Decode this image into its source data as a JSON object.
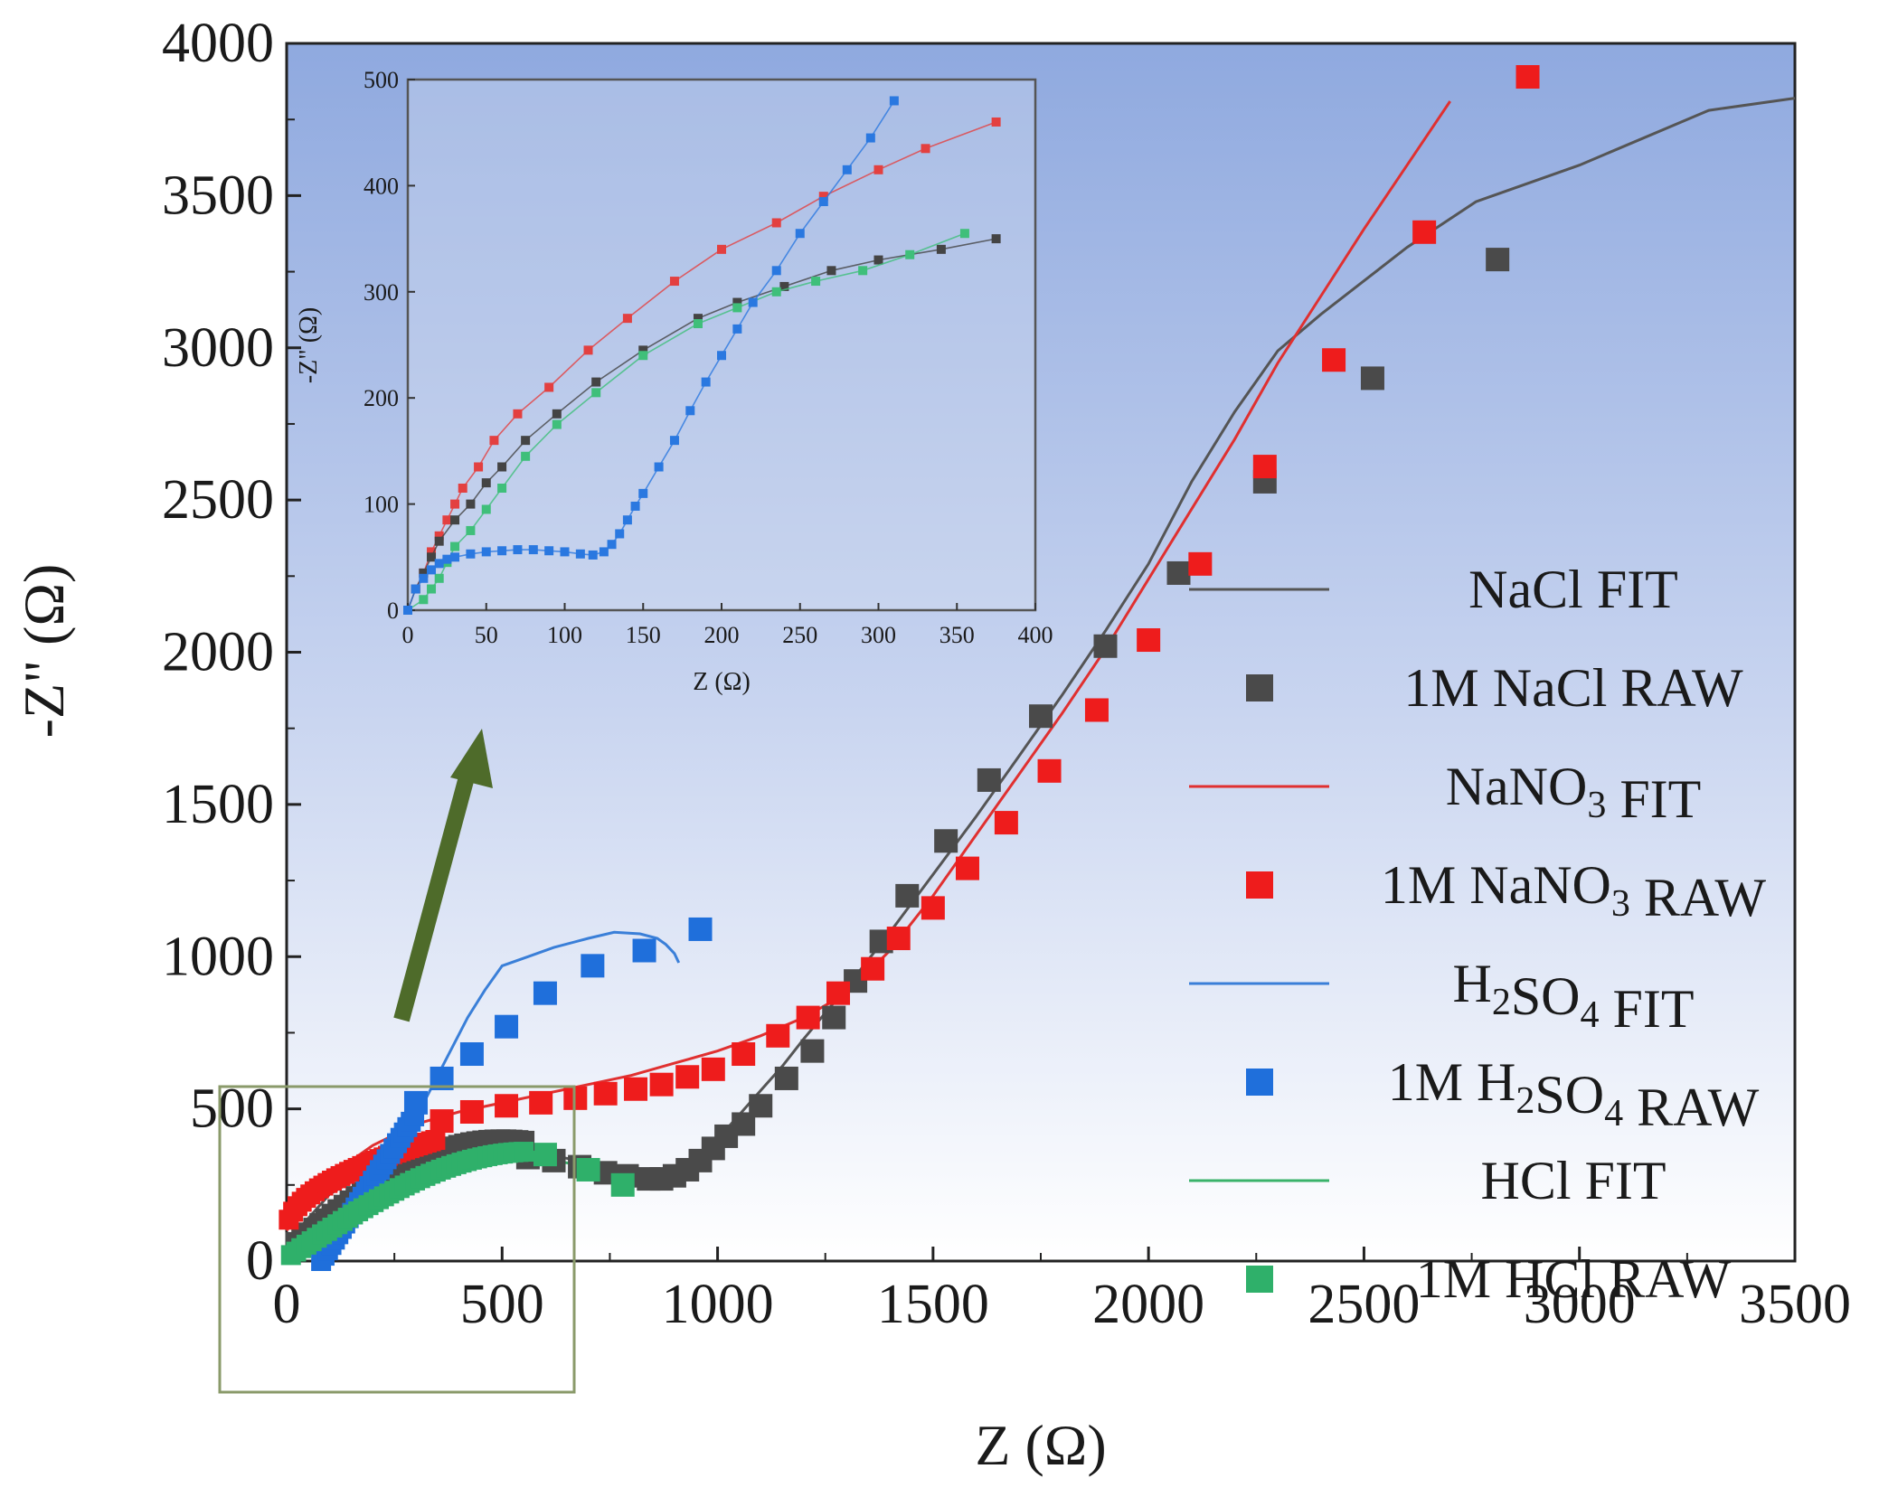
{
  "chart_data": [
    {
      "id": "main",
      "type": "scatter",
      "title": "",
      "xlabel": "Z (Ω)",
      "ylabel": "-Z\" (Ω)",
      "xlim": [
        0,
        3500
      ],
      "ylim": [
        0,
        4000
      ],
      "xticks": [
        0,
        500,
        1000,
        1500,
        2000,
        2500,
        3000,
        3500
      ],
      "yticks": [
        0,
        500,
        1000,
        1500,
        2000,
        2500,
        3000,
        3500,
        4000
      ],
      "xtick_labels": [
        "0",
        "500",
        "1000",
        "1500",
        "2000",
        "2500",
        "3000",
        "3500"
      ],
      "ytick_labels": [
        "0",
        "500",
        "1000",
        "1500",
        "2000",
        "2500",
        "3000",
        "3500",
        "4000"
      ],
      "legend_position": "right",
      "series": [
        {
          "name": "NaCl FIT",
          "kind": "line",
          "color": "#555555",
          "x": [
            0,
            100,
            200,
            300,
            400,
            500,
            600,
            700,
            800,
            850,
            900,
            950,
            1000,
            1050,
            1100,
            1150,
            1200,
            1300,
            1400,
            1500,
            1600,
            1700,
            1800,
            1900,
            2000,
            2100,
            2200,
            2300,
            2400,
            2500,
            2600,
            2760,
            3000,
            3300,
            3500
          ],
          "y": [
            60,
            220,
            300,
            345,
            365,
            365,
            350,
            325,
            295,
            285,
            300,
            340,
            400,
            480,
            560,
            640,
            730,
            900,
            1080,
            1270,
            1460,
            1660,
            1860,
            2070,
            2290,
            2560,
            2790,
            2990,
            3110,
            3220,
            3330,
            3480,
            3600,
            3780,
            3820
          ]
        },
        {
          "name": "1M NaCl RAW",
          "kind": "scatter",
          "color": "#4a4a4a",
          "x": [
            560,
            620,
            680,
            740,
            790,
            840,
            870,
            900,
            930,
            960,
            990,
            1020,
            1060,
            1100,
            1160,
            1220,
            1270,
            1320,
            1380,
            1440,
            1530,
            1630,
            1750,
            1900,
            2070,
            2270,
            2520,
            2810
          ],
          "y": [
            340,
            330,
            310,
            290,
            280,
            270,
            270,
            280,
            300,
            330,
            370,
            410,
            450,
            510,
            600,
            690,
            800,
            920,
            1050,
            1200,
            1380,
            1580,
            1790,
            2020,
            2260,
            2560,
            2900,
            3290
          ]
        },
        {
          "name": "NaNO3 FIT",
          "kind": "line",
          "color": "#e03030",
          "x": [
            0,
            100,
            200,
            300,
            400,
            500,
            600,
            700,
            800,
            900,
            1000,
            1100,
            1200,
            1300,
            1400,
            1500,
            1600,
            1700,
            1800,
            1900,
            2000,
            2100,
            2200,
            2300,
            2400,
            2500,
            2600,
            2700
          ],
          "y": [
            100,
            280,
            380,
            450,
            490,
            520,
            550,
            580,
            610,
            650,
            690,
            740,
            800,
            880,
            1020,
            1200,
            1400,
            1600,
            1800,
            2010,
            2240,
            2470,
            2700,
            2950,
            3170,
            3390,
            3600,
            3810
          ]
        },
        {
          "name": "1M NaNO3 RAW",
          "kind": "scatter",
          "color": "#ee1c1c",
          "x": [
            360,
            430,
            510,
            590,
            670,
            740,
            810,
            870,
            930,
            990,
            1060,
            1140,
            1210,
            1280,
            1360,
            1420,
            1500,
            1580,
            1670,
            1770,
            1880,
            2000,
            2120,
            2270,
            2430,
            2640,
            2880
          ],
          "y": [
            460,
            490,
            510,
            520,
            535,
            550,
            565,
            580,
            605,
            630,
            680,
            740,
            800,
            880,
            960,
            1060,
            1160,
            1290,
            1440,
            1610,
            1810,
            2040,
            2290,
            2610,
            2960,
            3380,
            3890
          ]
        },
        {
          "name": "H2SO4 FIT",
          "kind": "line",
          "color": "#3a7fd8",
          "x": [
            80,
            120,
            160,
            200,
            250,
            300,
            340,
            380,
            420,
            460,
            500,
            560,
            620,
            700,
            760,
            820,
            860,
            880,
            900,
            910
          ],
          "y": [
            0,
            80,
            160,
            250,
            360,
            470,
            580,
            690,
            800,
            890,
            970,
            1000,
            1030,
            1060,
            1080,
            1075,
            1060,
            1040,
            1010,
            980
          ]
        },
        {
          "name": "1M H2SO4 RAW",
          "kind": "scatter",
          "color": "#1f6fdb",
          "x": [
            300,
            360,
            430,
            510,
            600,
            710,
            830,
            960
          ],
          "y": [
            520,
            600,
            680,
            770,
            880,
            970,
            1020,
            1090
          ]
        },
        {
          "name": "HCl FIT",
          "kind": "line",
          "color": "#3ab26a",
          "x": [
            0,
            60,
            120,
            180,
            240,
            300,
            360,
            420,
            480,
            540,
            600,
            660,
            720,
            780
          ],
          "y": [
            0,
            120,
            210,
            270,
            310,
            330,
            345,
            350,
            350,
            345,
            335,
            320,
            300,
            270
          ]
        },
        {
          "name": "1M HCl RAW",
          "kind": "scatter",
          "color": "#2fb06a",
          "x": [
            600,
            700,
            780
          ],
          "y": [
            350,
            300,
            250
          ]
        }
      ],
      "annotations": [
        "zoom-box around 0–660 Ω region",
        "arrow pointing to inset"
      ]
    },
    {
      "id": "inset",
      "type": "scatter",
      "title": "",
      "xlabel": "Z (Ω)",
      "ylabel": "-Z\" (Ω)",
      "xlim": [
        0,
        400
      ],
      "ylim": [
        0,
        500
      ],
      "xticks": [
        0,
        50,
        100,
        150,
        200,
        250,
        300,
        350,
        400
      ],
      "yticks": [
        0,
        100,
        200,
        300,
        400,
        500
      ],
      "xtick_labels": [
        "0",
        "50",
        "100",
        "150",
        "200",
        "250",
        "300",
        "350",
        "400"
      ],
      "ytick_labels": [
        "0",
        "100",
        "200",
        "300",
        "400",
        "500"
      ],
      "series": [
        {
          "name": "NaNO3",
          "color": "#e34040",
          "x": [
            0,
            5,
            10,
            15,
            20,
            25,
            30,
            35,
            45,
            55,
            70,
            90,
            115,
            140,
            170,
            200,
            235,
            265,
            300,
            330,
            375
          ],
          "y": [
            0,
            20,
            35,
            55,
            70,
            85,
            100,
            115,
            135,
            160,
            185,
            210,
            245,
            275,
            310,
            340,
            365,
            390,
            415,
            435,
            460
          ]
        },
        {
          "name": "NaCl",
          "color": "#444444",
          "x": [
            0,
            5,
            10,
            15,
            20,
            30,
            40,
            50,
            60,
            75,
            95,
            120,
            150,
            185,
            210,
            240,
            270,
            300,
            340,
            375
          ],
          "y": [
            0,
            20,
            35,
            50,
            65,
            85,
            100,
            120,
            135,
            160,
            185,
            215,
            245,
            275,
            290,
            305,
            320,
            330,
            340,
            350
          ]
        },
        {
          "name": "HCl",
          "color": "#3fbf7a",
          "x": [
            0,
            10,
            15,
            20,
            25,
            30,
            40,
            50,
            60,
            75,
            95,
            120,
            150,
            185,
            210,
            235,
            260,
            290,
            320,
            355
          ],
          "y": [
            0,
            10,
            20,
            30,
            45,
            60,
            75,
            95,
            115,
            145,
            175,
            205,
            240,
            270,
            285,
            300,
            310,
            320,
            335,
            355
          ]
        },
        {
          "name": "H2SO4",
          "color": "#2a78e0",
          "x": [
            0,
            5,
            10,
            15,
            20,
            25,
            30,
            40,
            50,
            60,
            70,
            80,
            90,
            100,
            110,
            118,
            125,
            130,
            135,
            140,
            145,
            150,
            160,
            170,
            180,
            190,
            200,
            210,
            220,
            235,
            250,
            265,
            280,
            295,
            310
          ],
          "y": [
            0,
            20,
            30,
            38,
            44,
            48,
            50,
            53,
            55,
            56,
            57,
            57,
            56,
            55,
            53,
            52,
            55,
            62,
            72,
            85,
            98,
            110,
            135,
            160,
            188,
            215,
            240,
            265,
            290,
            320,
            355,
            385,
            415,
            445,
            480
          ]
        }
      ]
    }
  ],
  "legend": [
    {
      "text": "NaCl FIT",
      "main": "NaCl FIT",
      "sub": "",
      "tail": "",
      "marker": "line",
      "color": "#555555"
    },
    {
      "text": "1M NaCl RAW",
      "main": "1M NaCl RAW",
      "sub": "",
      "tail": "",
      "marker": "square",
      "color": "#4a4a4a"
    },
    {
      "text": "NaNO3 FIT",
      "main": "NaNO",
      "sub": "3",
      "tail": " FIT",
      "marker": "line",
      "color": "#e03030"
    },
    {
      "text": "1M NaNO3 RAW",
      "main": "1M NaNO",
      "sub": "3",
      "tail": " RAW",
      "marker": "square",
      "color": "#ee1c1c"
    },
    {
      "text": "H2SO4 FIT",
      "main": "H",
      "sub": "2",
      "mid": "SO",
      "sub2": "4",
      "tail": " FIT",
      "marker": "line",
      "color": "#3a7fd8"
    },
    {
      "text": "1M H2SO4 RAW",
      "main": "1M H",
      "sub": "2",
      "mid": "SO",
      "sub2": "4",
      "tail": " RAW",
      "marker": "square",
      "color": "#1f6fdb"
    },
    {
      "text": "HCl FIT",
      "main": "HCl FIT",
      "sub": "",
      "tail": "",
      "marker": "line",
      "color": "#3ab26a"
    },
    {
      "text": "1M HCl RAW",
      "main": "1M HCl RAW",
      "sub": "",
      "tail": "",
      "marker": "square",
      "color": "#2fb06a"
    }
  ],
  "colors": {
    "plot_bg_top": "#8fa9df",
    "plot_bg_bottom": "#ffffff",
    "arrow": "#4e6b2a",
    "zoom_box": "#8a9a6a"
  }
}
